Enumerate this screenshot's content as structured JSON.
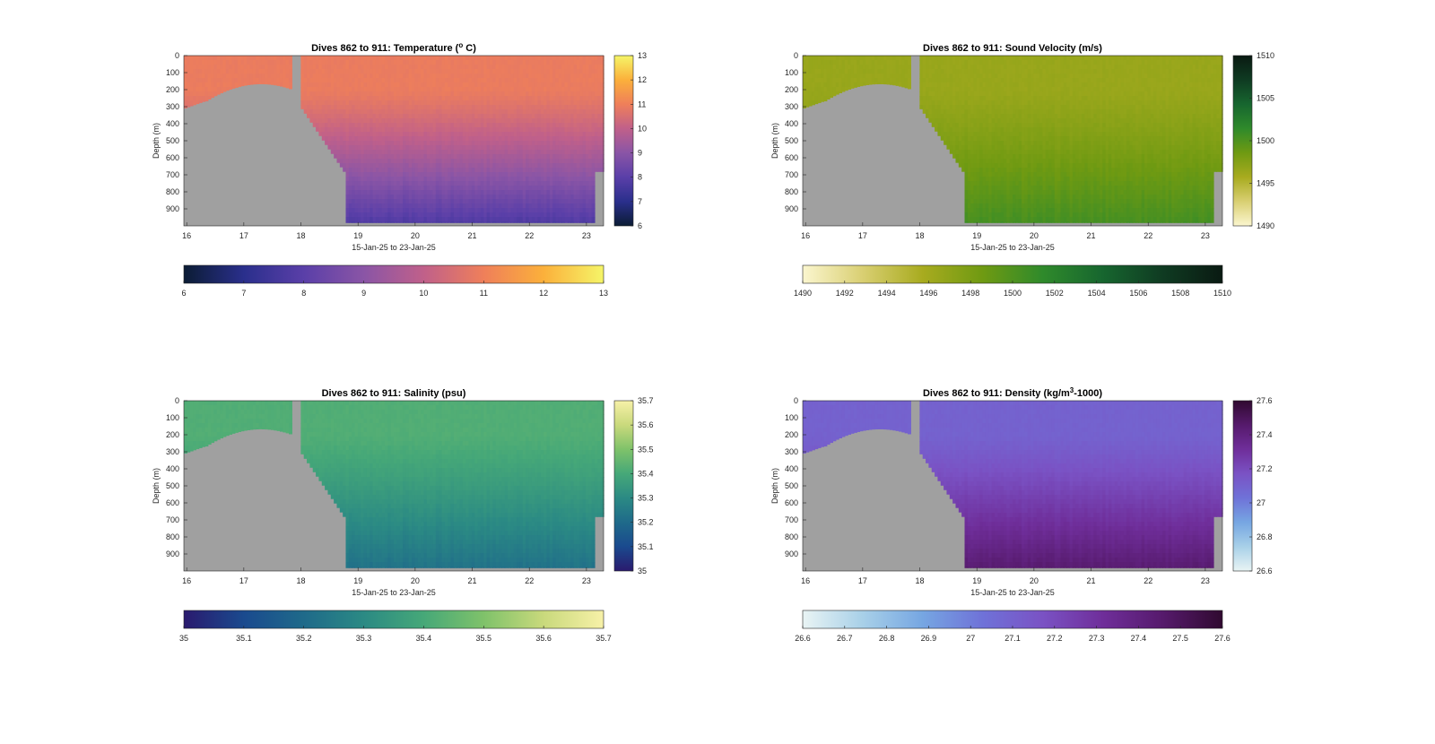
{
  "chart_data": [
    {
      "type": "heatmap",
      "title": "Dives 862 to 911: Temperature (",
      "title_sup": "o",
      "title_tail": " C)",
      "xlabel": "15-Jan-25 to 23-Jan-25",
      "ylabel": "Depth (m)",
      "xlim": [
        15.95,
        23.3
      ],
      "ylim": [
        1000,
        0
      ],
      "x_ticks": [
        "16",
        "17",
        "18",
        "19",
        "20",
        "21",
        "22",
        "23"
      ],
      "y_ticks": [
        "0",
        "100",
        "200",
        "300",
        "400",
        "500",
        "600",
        "700",
        "800",
        "900"
      ],
      "colorbar_ticks": [
        "6",
        "7",
        "8",
        "9",
        "10",
        "11",
        "12",
        "13"
      ],
      "horizontal_colorbar_ticks": [
        "6",
        "7",
        "8",
        "9",
        "10",
        "11",
        "12",
        "13"
      ],
      "clim": [
        6,
        13
      ],
      "surface_value": 10.9,
      "deep_value": 7.7,
      "colors": [
        "#0b1c34",
        "#2a2f8c",
        "#5a3fa8",
        "#8a55a6",
        "#c0608a",
        "#ef7f5a",
        "#fbb03b",
        "#f5f568"
      ],
      "mask_color": "#a0a0a0"
    },
    {
      "type": "heatmap",
      "title": "Dives 862 to 911: Sound Velocity (m/s)",
      "xlabel": "15-Jan-25 to 23-Jan-25",
      "ylabel": "Depth (m)",
      "xlim": [
        15.95,
        23.3
      ],
      "ylim": [
        1000,
        0
      ],
      "x_ticks": [
        "16",
        "17",
        "18",
        "19",
        "20",
        "21",
        "22",
        "23"
      ],
      "y_ticks": [
        "0",
        "100",
        "200",
        "300",
        "400",
        "500",
        "600",
        "700",
        "800",
        "900"
      ],
      "colorbar_ticks": [
        "1490",
        "1495",
        "1500",
        "1505",
        "1510"
      ],
      "horizontal_colorbar_ticks": [
        "1490",
        "1492",
        "1494",
        "1496",
        "1498",
        "1500",
        "1502",
        "1504",
        "1506",
        "1508",
        "1510"
      ],
      "clim": [
        1490,
        1510
      ],
      "surface_value": 1496.5,
      "deep_value": 1500.5,
      "colors": [
        "#fbf6cf",
        "#d9cf72",
        "#a8ab1f",
        "#6f9a12",
        "#2f8a2b",
        "#17662f",
        "#0f3b22",
        "#0a1a12"
      ],
      "mask_color": "#a0a0a0"
    },
    {
      "type": "heatmap",
      "title": "Dives 862 to 911: Salinity (psu)",
      "xlabel": "15-Jan-25 to 23-Jan-25",
      "ylabel": "Depth (m)",
      "xlim": [
        15.95,
        23.3
      ],
      "ylim": [
        1000,
        0
      ],
      "x_ticks": [
        "16",
        "17",
        "18",
        "19",
        "20",
        "21",
        "22",
        "23"
      ],
      "y_ticks": [
        "0",
        "100",
        "200",
        "300",
        "400",
        "500",
        "600",
        "700",
        "800",
        "900"
      ],
      "colorbar_ticks": [
        "35",
        "35.1",
        "35.2",
        "35.3",
        "35.4",
        "35.5",
        "35.6",
        "35.7"
      ],
      "horizontal_colorbar_ticks": [
        "35",
        "35.1",
        "35.2",
        "35.3",
        "35.4",
        "35.5",
        "35.6",
        "35.7"
      ],
      "clim": [
        35,
        35.7
      ],
      "surface_value": 35.42,
      "deep_value": 35.22,
      "colors": [
        "#2a1a6e",
        "#1a4a8e",
        "#1f6a8a",
        "#2b8a84",
        "#46a878",
        "#7fc26a",
        "#c9d97c",
        "#f7f1a8"
      ],
      "mask_color": "#a0a0a0"
    },
    {
      "type": "heatmap",
      "title": "Dives 862 to 911: Density (kg/m",
      "title_sup": "3",
      "title_tail": "-1000)",
      "xlabel": "15-Jan-25 to 23-Jan-25",
      "ylabel": "Depth (m)",
      "xlim": [
        15.95,
        23.3
      ],
      "ylim": [
        1000,
        0
      ],
      "x_ticks": [
        "16",
        "17",
        "18",
        "19",
        "20",
        "21",
        "22",
        "23"
      ],
      "y_ticks": [
        "0",
        "100",
        "200",
        "300",
        "400",
        "500",
        "600",
        "700",
        "800",
        "900"
      ],
      "colorbar_ticks": [
        "26.6",
        "26.8",
        "27",
        "27.2",
        "27.4",
        "27.6"
      ],
      "horizontal_colorbar_ticks": [
        "26.6",
        "26.7",
        "26.8",
        "26.9",
        "27",
        "27.1",
        "27.2",
        "27.3",
        "27.4",
        "27.5",
        "27.6"
      ],
      "clim": [
        26.6,
        27.6
      ],
      "surface_value": 27.1,
      "deep_value": 27.45,
      "colors": [
        "#e9f4f4",
        "#a8d0e8",
        "#76a6e2",
        "#6f72d8",
        "#7a52c4",
        "#6f2e9a",
        "#561a6c",
        "#300a30"
      ],
      "mask_color": "#a0a0a0"
    }
  ]
}
